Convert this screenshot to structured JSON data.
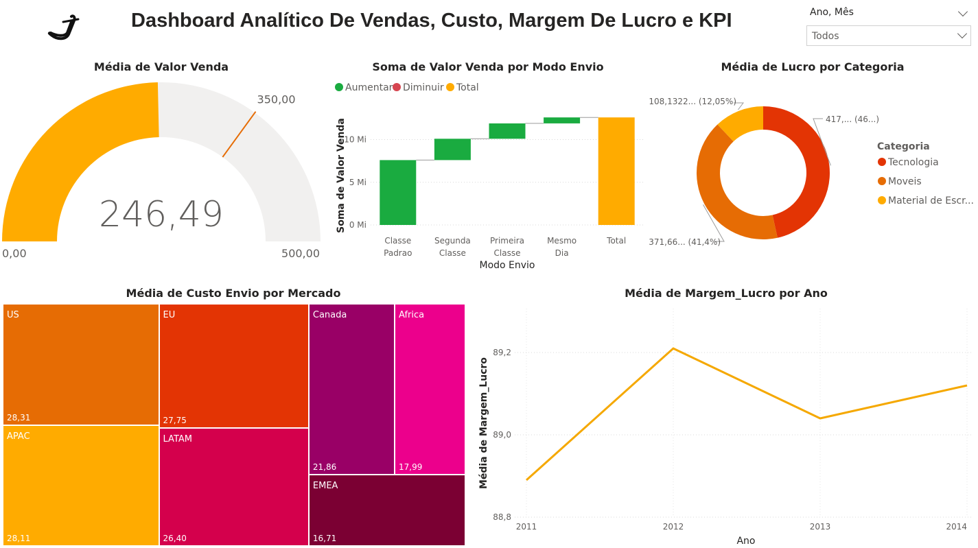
{
  "header": {
    "title": "Dashboard Analítico De Vendas, Custo, Margem De Lucro e KPI"
  },
  "slicer": {
    "label": "Ano, Mês",
    "value": "Todos"
  },
  "colors": {
    "orange_yellow": "#FFAB00",
    "green": "#1AAB40",
    "red": "#D64550",
    "tecnologia": "#E33404",
    "moveis": "#E66C04",
    "gauge_bg": "#F1F0EF",
    "target": "#E66C04",
    "line": "#F5A800"
  },
  "chart_data": [
    {
      "type": "gauge",
      "title": "Média de Valor Venda",
      "value": 246.49,
      "value_label": "246,49",
      "min": 0,
      "max": 500,
      "min_label": "0,00",
      "max_label": "500,00",
      "target": 350,
      "target_label": "350,00"
    },
    {
      "type": "waterfall",
      "title": "Soma de Valor Venda por Modo Envio",
      "legend": [
        "Aumentar",
        "Diminuir",
        "Total"
      ],
      "xlabel": "Modo Envio",
      "ylabel": "Soma de Valor Venda",
      "categories": [
        "Classe Padrao",
        "Segunda Classe",
        "Primeira Classe",
        "Mesmo Dia",
        "Total"
      ],
      "category_lines": [
        [
          "Classe",
          "Padrao"
        ],
        [
          "Segunda",
          "Classe"
        ],
        [
          "Primeira",
          "Classe"
        ],
        [
          "Mesmo",
          "Dia"
        ],
        [
          "Total"
        ]
      ],
      "values": [
        7.6,
        2.5,
        1.8,
        0.7,
        12.6
      ],
      "yticks": [
        0,
        5,
        10
      ],
      "ytick_labels": [
        "0 Mi",
        "5 Mi",
        "10 Mi"
      ],
      "ylim": [
        0,
        13.5
      ]
    },
    {
      "type": "pie",
      "title": "Média de Lucro por Categoria",
      "legend_title": "Categoria",
      "labels": [
        "Tecnologia",
        "Moveis",
        "Material de Escr..."
      ],
      "values": [
        46.55,
        41.4,
        12.05
      ],
      "slice_labels": [
        "417,... (46...)",
        "371,66... (41,4%)",
        "108,1322... (12,05%)"
      ]
    },
    {
      "type": "treemap",
      "title": "Média de Custo Envio por Mercado",
      "categories": [
        "US",
        "APAC",
        "EU",
        "LATAM",
        "Canada",
        "Africa",
        "EMEA"
      ],
      "values": [
        28.31,
        28.11,
        27.75,
        26.4,
        21.86,
        17.99,
        16.71
      ],
      "value_labels": [
        "28,31",
        "28,11",
        "27,75",
        "26,40",
        "21,86",
        "17,99",
        "16,71"
      ],
      "colors": [
        "#E66C04",
        "#FFAB00",
        "#E33404",
        "#D4004C",
        "#990066",
        "#EC008C",
        "#7B0033"
      ]
    },
    {
      "type": "line",
      "title": "Média de Margem_Lucro por Ano",
      "xlabel": "Ano",
      "ylabel": "Média de Margem_Lucro",
      "x": [
        "2011",
        "2012",
        "2013",
        "2014"
      ],
      "y": [
        88.89,
        89.21,
        89.04,
        89.12
      ],
      "yticks": [
        "88,8",
        "89,0",
        "89,2"
      ],
      "ylim": [
        88.8,
        89.3
      ]
    }
  ]
}
